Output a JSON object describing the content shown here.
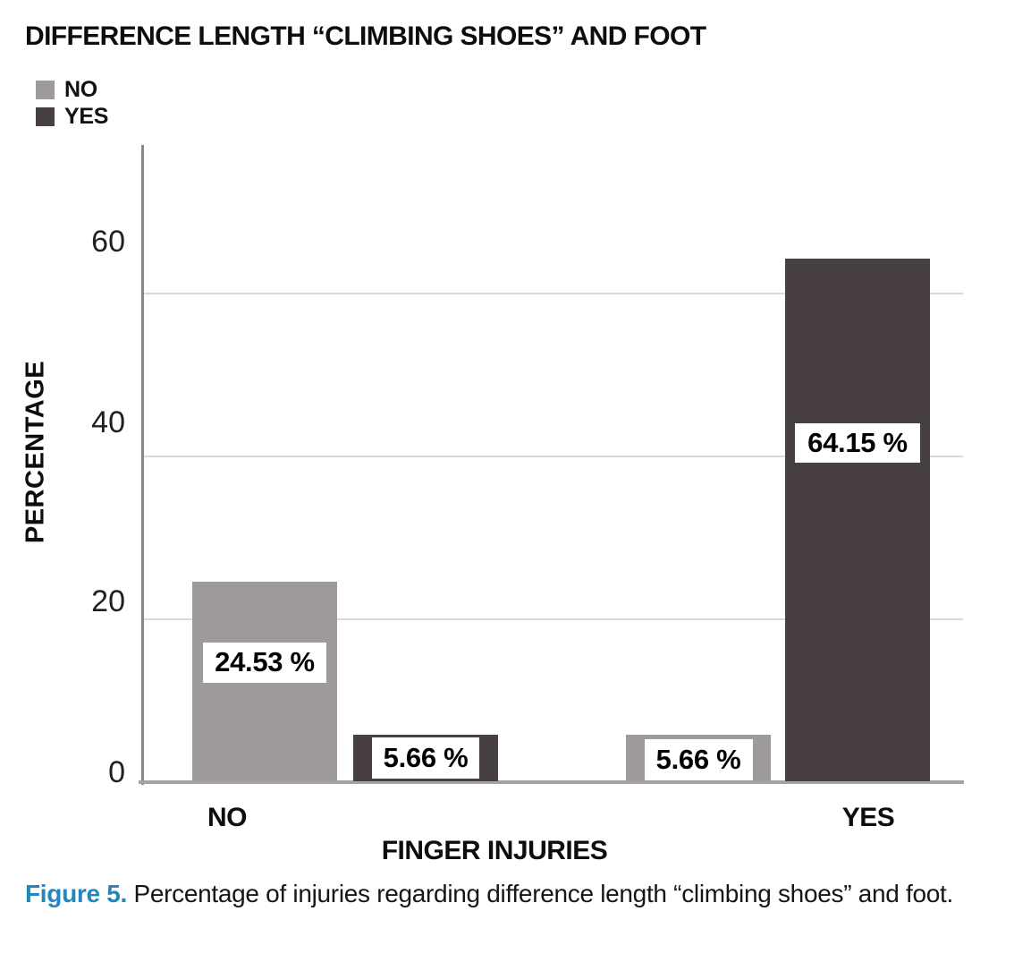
{
  "title": "DIFFERENCE LENGTH “CLIMBING SHOES” AND FOOT",
  "legend": {
    "items": [
      {
        "label": "NO",
        "color": "#9f9b9d"
      },
      {
        "label": "YES",
        "color": "#473f44"
      }
    ]
  },
  "chart_data": {
    "type": "bar",
    "title": "DIFFERENCE LENGTH “CLIMBING SHOES” AND FOOT",
    "xlabel": "FINGER INJURIES",
    "ylabel": "PERCENTAGE",
    "categories": [
      "NO",
      "YES"
    ],
    "series": [
      {
        "name": "NO",
        "color": "#9f9b9d",
        "values": [
          24.53,
          5.66
        ]
      },
      {
        "name": "YES",
        "color": "#473f44",
        "values": [
          5.66,
          64.15
        ]
      }
    ],
    "value_labels": [
      [
        "24.53 %",
        "5.66 %"
      ],
      [
        "5.66 %",
        "64.15 %"
      ]
    ],
    "yticks": [
      0,
      20,
      40,
      60
    ],
    "ylim": [
      0,
      78
    ],
    "grid": "horizontal",
    "legend_position": "top-left",
    "colors": {
      "grid": "#d9d9d9",
      "axis": "#8a8a8a",
      "label_box_bg": "#ffffff"
    }
  },
  "caption": {
    "lead": "Figure 5.",
    "text": "Percentage of injuries regarding difference length “climbing shoes” and foot.",
    "lead_color": "#2187bd"
  }
}
